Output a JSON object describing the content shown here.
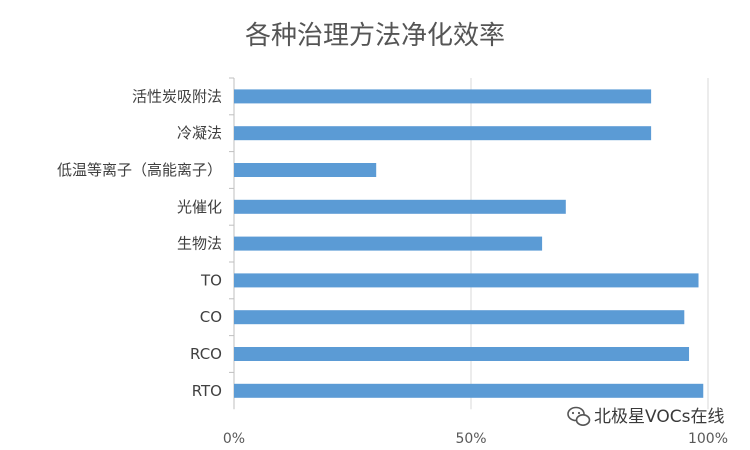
{
  "chart_data": {
    "type": "bar",
    "orientation": "horizontal",
    "title": "各种治理方法净化效率",
    "categories": [
      "活性炭吸附法",
      "冷凝法",
      "低温等离子（高能离子）",
      "光催化",
      "生物法",
      "TO",
      "CO",
      "RCO",
      "RTO"
    ],
    "values": [
      0.88,
      0.88,
      0.3,
      0.7,
      0.65,
      0.98,
      0.95,
      0.96,
      0.99
    ],
    "xlim": [
      0,
      1
    ],
    "x_ticks": [
      "0%",
      "50%",
      "100%"
    ],
    "x_tick_values": [
      0,
      0.5,
      1
    ],
    "grid": true,
    "legend": "none",
    "colors": {
      "bar": "#5b9bd5",
      "grid": "#d9d9d9",
      "axis": "#bfbfbf"
    }
  },
  "watermark": {
    "text": "北极星VOCs在线",
    "icon": "wechat-icon"
  }
}
